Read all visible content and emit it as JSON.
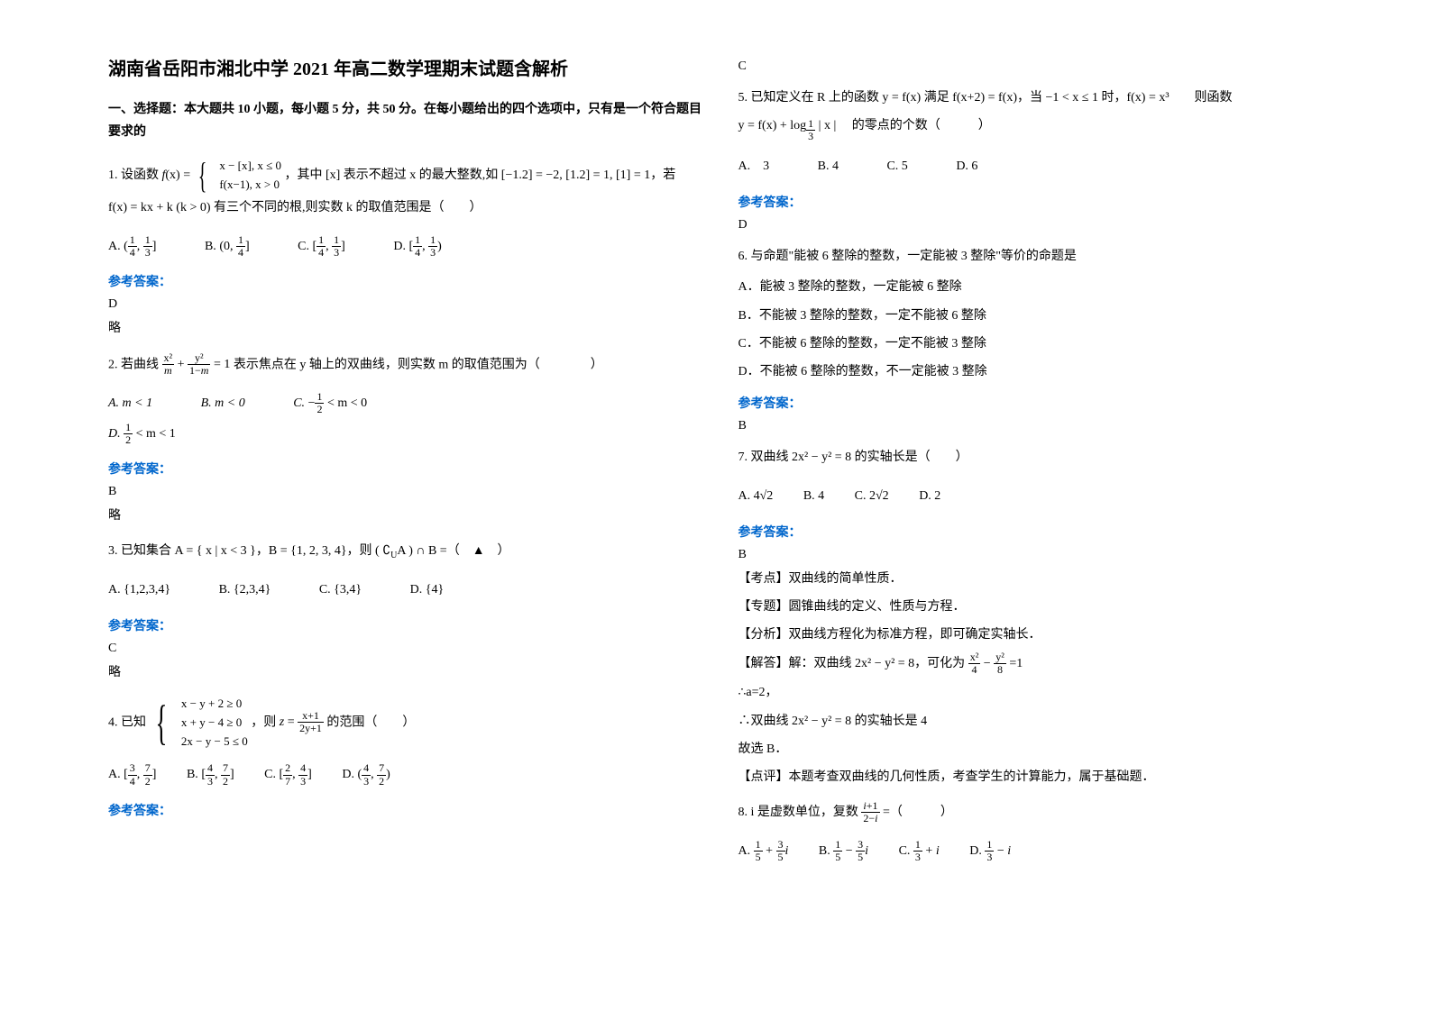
{
  "title": "湖南省岳阳市湘北中学 2021 年高二数学理期末试题含解析",
  "section1_header": "一、选择题：本大题共 10 小题，每小题 5 分，共 50 分。在每小题给出的四个选项中，只有是一个符合题目要求的",
  "q1": {
    "prefix": "1. 设函数",
    "body1": "，其中 [x] 表示不超过 x 的最大整数,如 [−1.2] = −2, [1.2] = 1, [1] = 1，若",
    "body2": "f(x) = kx + k (k > 0) 有三个不同的根,则实数 k 的取值范围是（　　）",
    "case1": "x − [x], x ≤ 0",
    "case2": "f(x−1), x > 0",
    "optA": "A.",
    "optB": "B.",
    "optC": "C.",
    "optD": "D."
  },
  "q1_answer_label": "参考答案：",
  "q1_answer": "D",
  "q1_note": "略",
  "q2": {
    "prefix": "2. 若曲线",
    "body": "表示焦点在 y 轴上的双曲线，则实数 m 的取值范围为（　　　　）",
    "optA": "A. m < 1",
    "optB": "B. m < 0",
    "optC_prefix": "C. ",
    "optC_body": "< m < 0",
    "optD_prefix": "D. ",
    "optD_body": "< m < 1"
  },
  "q2_answer_label": "参考答案：",
  "q2_answer": "B",
  "q2_note": "略",
  "q3": {
    "prefix": "3. 已知集合 A = { x | x < 3 }，B = {1, 2, 3, 4}，则 ( ∁",
    "mid": "A ) ∩ B =（　▲　）",
    "optA": "A. {1,2,3,4}",
    "optB": "B. {2,3,4}",
    "optC": "C. {3,4}",
    "optD": "D. {4}"
  },
  "q3_answer_label": "参考答案：",
  "q3_answer": "C",
  "q3_note": "略",
  "q4": {
    "prefix": "4. 已知",
    "case1": "x − y + 2 ≥ 0",
    "case2": "x + y − 4 ≥ 0",
    "case3": "2x − y − 5 ≤ 0",
    "mid": "，则",
    "body": "的范围（　　）",
    "optA": "A.",
    "optB": "B.",
    "optC": "C.",
    "optD": "D."
  },
  "q4_answer_label": "参考答案：",
  "q4_right_answer": "C",
  "q5": {
    "prefix": "5. 已知定义在 R 上的函数 y = f(x) 满足 f(x+2) = f(x)，当 −1 < x ≤ 1 时，f(x) = x³　　则函数",
    "body": "的零点的个数（　　　）",
    "func": "y = f(x) + log",
    "func2": "| x |",
    "optA": "A.　3",
    "optB": "B. 4",
    "optC": "C. 5",
    "optD": "D. 6"
  },
  "q5_answer_label": "参考答案：",
  "q5_answer": "D",
  "q6": {
    "prefix": "6. 与命题\"能被 6 整除的整数，一定能被 3 整除\"等价的命题是",
    "optA": "A．能被 3 整除的整数，一定能被 6 整除",
    "optB": "B．不能被 3 整除的整数，一定不能被 6 整除",
    "optC": "C．不能被 6 整除的整数，一定不能被 3 整除",
    "optD": "D．不能被 6 整除的整数，不一定能被 3 整除"
  },
  "q6_answer_label": "参考答案：",
  "q6_answer": "B",
  "q7": {
    "prefix": "7. 双曲线 2x² − y² = 8 的实轴长是（　　）",
    "optA_prefix": "A. 4",
    "optB": "B. 4",
    "optC_prefix": "C. 2",
    "optD": "D. 2"
  },
  "q7_answer_label": "参考答案：",
  "q7_answer": "B",
  "q7_note1": "【考点】双曲线的简单性质．",
  "q7_note2": "【专题】圆锥曲线的定义、性质与方程．",
  "q7_note3": "【分析】双曲线方程化为标准方程，即可确定实轴长．",
  "q7_note4_prefix": "【解答】解：双曲线 2x² − y² = 8，可化为",
  "q7_note5": "∴a=2，",
  "q7_note6": "∴双曲线 2x² − y² = 8 的实轴长是 4",
  "q7_note7": "故选 B．",
  "q7_note8": "【点评】本题考查双曲线的几何性质，考查学生的计算能力，属于基础题．",
  "q8": {
    "prefix": "8. i 是虚数单位，复数",
    "suffix": "=（　　　）",
    "optA": "A.",
    "optB": "B.",
    "optC": "C.",
    "optD": "D."
  }
}
